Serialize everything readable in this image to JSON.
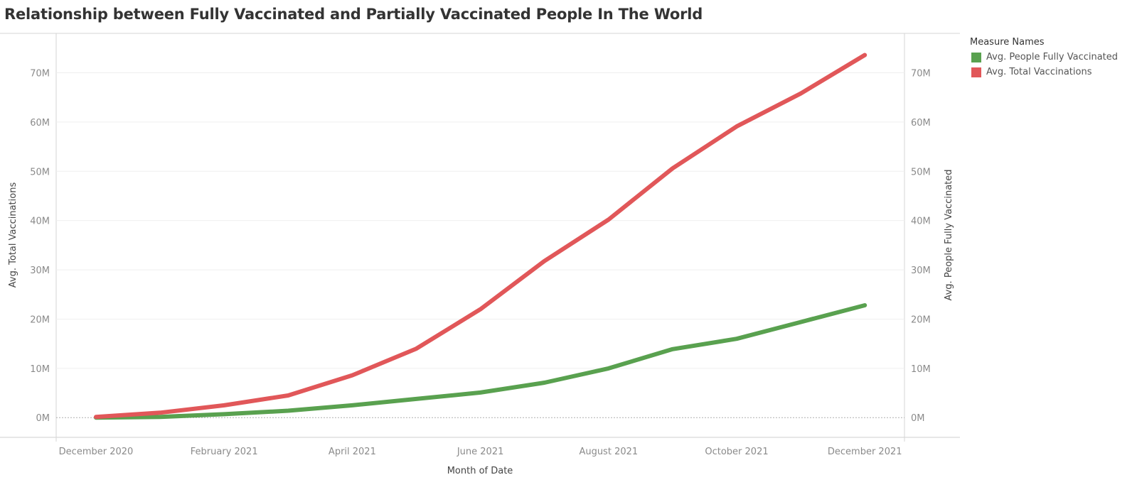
{
  "chart_data": {
    "type": "line",
    "title": "Relationship between Fully Vaccinated and Partially Vaccinated People In The World",
    "xlabel": "Month of Date",
    "ylabel_left": "Avg. Total Vaccinations",
    "ylabel_right": "Avg. People Fully Vaccinated",
    "x_ticks": [
      "December 2020",
      "February 2021",
      "April 2021",
      "June 2021",
      "August 2021",
      "October 2021",
      "December 2021"
    ],
    "y_ticks": [
      "0M",
      "10M",
      "20M",
      "30M",
      "40M",
      "50M",
      "60M",
      "70M"
    ],
    "ylim": [
      -4000000,
      78000000
    ],
    "x": [
      "2020-12",
      "2021-01",
      "2021-02",
      "2021-03",
      "2021-04",
      "2021-05",
      "2021-06",
      "2021-07",
      "2021-08",
      "2021-09",
      "2021-10",
      "2021-11",
      "2021-12"
    ],
    "series": [
      {
        "name": "Avg. People Fully Vaccinated",
        "color": "#59a14f",
        "values": [
          0,
          150000,
          700000,
          1400000,
          2500000,
          3800000,
          5100000,
          7100000,
          10000000,
          13900000,
          16000000,
          19400000,
          22800000
        ]
      },
      {
        "name": "Avg. Total Vaccinations",
        "color": "#e15759",
        "values": [
          150000,
          1000000,
          2500000,
          4500000,
          8600000,
          14000000,
          22000000,
          31800000,
          40200000,
          50600000,
          59100000,
          65800000,
          73600000
        ]
      }
    ],
    "legend": {
      "title": "Measure Names",
      "position": "right",
      "items": [
        "Avg. People Fully Vaccinated",
        "Avg. Total Vaccinations"
      ]
    },
    "grid": true
  }
}
